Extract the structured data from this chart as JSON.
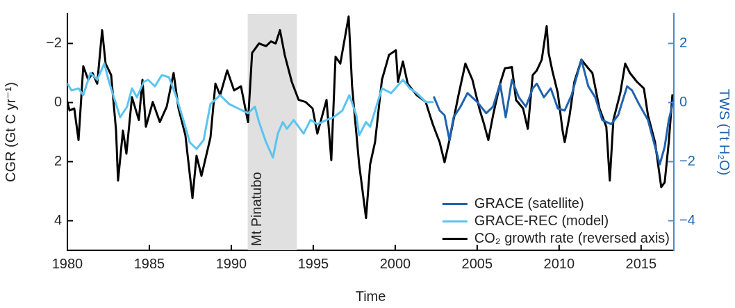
{
  "chart_data": {
    "type": "line",
    "xlabel": "Time",
    "ylabel": "CGR (Gt C yr⁻¹)",
    "y2label": "TWS (Tt H₂O)",
    "xlim": [
      1980,
      2017
    ],
    "xticks": [
      1980,
      1985,
      1990,
      1995,
      2000,
      2005,
      2010,
      2015
    ],
    "ylim": [
      5,
      -3
    ],
    "yticks": [
      {
        "value": -2,
        "label": "−2"
      },
      0,
      2,
      4
    ],
    "y2lim": [
      -5,
      3
    ],
    "y2ticks": [
      2,
      0,
      {
        "value": -2,
        "label": "−2"
      },
      {
        "value": -4,
        "label": "−4"
      }
    ],
    "grid": false,
    "legend": "bottom right",
    "line_style": "solid",
    "marker": "none",
    "bands": [
      {
        "axis": "x",
        "from": 1991,
        "to": 1994,
        "label": "Mt Pinatubo",
        "color": "#e0e0e0"
      }
    ],
    "series": [
      {
        "name": "GRACE (satellite)",
        "color": "#1f63b0",
        "axis": "y2",
        "x": [
          2002.37,
          2002.71,
          2003.01,
          2003.31,
          2003.56,
          2003.98,
          2004.41,
          2005.0,
          2005.55,
          2005.97,
          2006.4,
          2006.74,
          2007.12,
          2007.54,
          2007.97,
          2008.39,
          2008.64,
          2009.07,
          2009.49,
          2009.92,
          2010.34,
          2010.76,
          2011.36,
          2011.78,
          2012.2,
          2012.63,
          2013.18,
          2013.6,
          2014.15,
          2014.45,
          2014.87,
          2015.42,
          2016.14,
          2016.44,
          2016.69,
          2016.99
        ],
        "values": [
          0.18,
          -0.27,
          -0.43,
          -1.27,
          -0.5,
          -0.14,
          0.32,
          0.02,
          -0.36,
          -0.14,
          0.64,
          -0.5,
          0.77,
          0.18,
          -0.14,
          0.48,
          0.64,
          0.18,
          0.48,
          -0.2,
          -0.27,
          0.25,
          1.45,
          0.55,
          0.18,
          -0.59,
          -0.73,
          -0.43,
          0.55,
          0.41,
          -0.05,
          -0.59,
          -2.09,
          -1.5,
          -0.59,
          0.09
        ]
      },
      {
        "name": "GRACE-REC (model)",
        "color": "#5bc4f1",
        "axis": "y2",
        "x": [
          1980.0,
          1980.25,
          1980.68,
          1980.97,
          1981.4,
          1981.82,
          1982.25,
          1982.54,
          1982.97,
          1983.22,
          1983.64,
          1983.94,
          1984.24,
          1984.66,
          1984.92,
          1985.34,
          1985.76,
          1986.19,
          1986.61,
          1987.03,
          1987.46,
          1987.88,
          1988.31,
          1988.73,
          1989.32,
          1989.87,
          1990.42,
          1991.02,
          1991.44,
          1991.69,
          1992.12,
          1992.54,
          1992.84,
          1993.14,
          1993.39,
          1993.81,
          1994.41,
          1994.83,
          1995.25,
          1995.81,
          1996.23,
          1996.78,
          1997.2,
          1997.63,
          1997.8,
          1998.22,
          1998.47,
          1998.77,
          1999.19,
          1999.75,
          2000.47,
          2000.89,
          2001.31,
          2001.86,
          2002.29
        ],
        "values": [
          0.64,
          0.41,
          0.48,
          0.25,
          1.0,
          0.77,
          1.32,
          0.7,
          -0.05,
          -0.5,
          -0.14,
          0.48,
          0.18,
          0.7,
          0.77,
          0.55,
          0.93,
          0.86,
          0.25,
          -0.5,
          -1.34,
          -1.57,
          -1.27,
          -0.05,
          0.25,
          -0.05,
          -0.2,
          -0.36,
          -0.14,
          -0.66,
          -1.34,
          -1.86,
          -1.05,
          -0.66,
          -0.89,
          -0.59,
          -1.05,
          -0.59,
          -0.73,
          -0.59,
          -0.5,
          -0.27,
          0.25,
          -0.43,
          -1.11,
          -0.66,
          -0.82,
          -0.27,
          0.48,
          0.32,
          0.77,
          0.48,
          0.32,
          0.02,
          0.02
        ]
      },
      {
        "name": "CO₂ growth rate (reversed axis)",
        "color": "#000000",
        "x": [
          1980.0,
          1980.13,
          1980.42,
          1980.68,
          1980.97,
          1981.27,
          1981.53,
          1981.82,
          1982.12,
          1982.33,
          1982.67,
          1982.97,
          1983.09,
          1983.39,
          1983.6,
          1983.94,
          1984.36,
          1984.58,
          1984.79,
          1985.21,
          1985.64,
          1986.06,
          1986.48,
          1986.78,
          1987.2,
          1987.63,
          1987.88,
          1988.18,
          1988.73,
          1989.03,
          1989.32,
          1989.75,
          1990.17,
          1990.59,
          1991.02,
          1991.27,
          1991.69,
          1992.12,
          1992.42,
          1992.71,
          1992.97,
          1993.26,
          1993.69,
          1994.11,
          1994.53,
          1994.96,
          1995.25,
          1995.81,
          1996.1,
          1996.36,
          1996.65,
          1997.16,
          1997.37,
          1997.8,
          1998.22,
          1998.47,
          1998.77,
          1999.07,
          1999.19,
          1999.62,
          2000.04,
          2000.17,
          2000.47,
          2000.76,
          2001.31,
          2001.86,
          2002.29,
          2002.71,
          2003.01,
          2003.31,
          2003.86,
          2004.28,
          2004.71,
          2005.13,
          2005.42,
          2005.68,
          2005.97,
          2006.4,
          2006.69,
          2007.12,
          2007.37,
          2007.8,
          2008.09,
          2008.39,
          2008.64,
          2008.94,
          2009.24,
          2009.36,
          2009.58,
          2009.92,
          2010.21,
          2010.34,
          2010.64,
          2010.93,
          2011.36,
          2011.78,
          2012.03,
          2012.46,
          2012.88,
          2013.09,
          2013.31,
          2013.73,
          2014.03,
          2014.32,
          2014.75,
          2015.17,
          2015.42,
          2015.85,
          2016.23,
          2016.44,
          2016.69,
          2016.91
        ],
        "values": [
          -0.02,
          0.27,
          0.2,
          1.27,
          -1.23,
          -0.77,
          -1.0,
          -0.64,
          -2.45,
          -1.32,
          -0.93,
          0.95,
          2.64,
          0.95,
          1.73,
          -0.18,
          0.59,
          -0.77,
          0.82,
          -0.02,
          0.66,
          0.14,
          -1.0,
          0.2,
          1.11,
          3.23,
          1.8,
          2.48,
          1.18,
          -0.64,
          -0.25,
          -1.09,
          -0.41,
          -0.55,
          0.66,
          -1.68,
          -2.0,
          -1.91,
          -2.07,
          -2.0,
          -2.45,
          -1.61,
          -0.7,
          -0.09,
          -0.02,
          0.2,
          1.05,
          -0.09,
          1.95,
          -1.55,
          -1.32,
          -2.91,
          -0.55,
          2.09,
          3.91,
          2.09,
          1.34,
          -0.18,
          -0.77,
          -1.61,
          -1.77,
          -0.7,
          -1.39,
          -0.64,
          -0.25,
          -0.02,
          0.73,
          1.34,
          2.02,
          1.27,
          -0.25,
          -1.32,
          -0.77,
          0.2,
          0.73,
          1.27,
          0.43,
          -0.64,
          -1.16,
          -1.2,
          -0.09,
          0.2,
          0.89,
          -0.93,
          -1.09,
          -1.45,
          -2.59,
          -1.68,
          -1.09,
          -0.32,
          0.95,
          1.34,
          0.43,
          -0.7,
          -1.45,
          -1.16,
          -1.0,
          0.2,
          0.82,
          2.64,
          0.59,
          -0.32,
          -1.32,
          -1.0,
          -0.7,
          -0.48,
          0.43,
          1.34,
          2.86,
          2.7,
          1.34,
          -0.25
        ]
      }
    ]
  }
}
